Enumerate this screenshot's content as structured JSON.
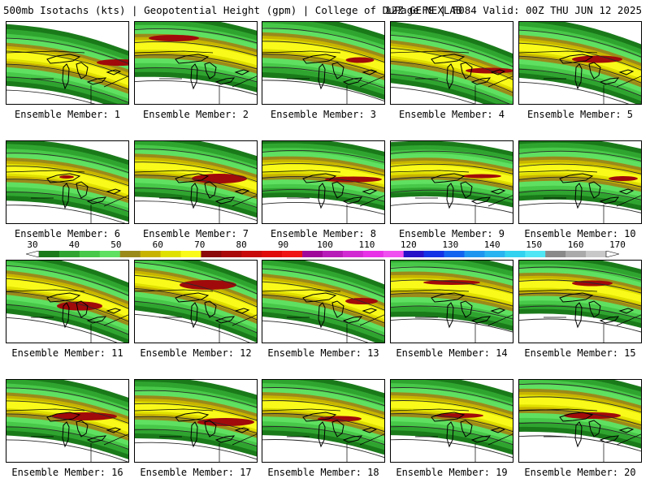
{
  "header": {
    "left": "500mb Isotachs (kts) | Geopotential Height (gpm) | College of DuPage NEXLAB",
    "right": "12Z GEFS | F084 Valid: 00Z THU JUN 12 2025"
  },
  "colorbar": {
    "labels": [
      "30",
      "40",
      "50",
      "60",
      "70",
      "80",
      "90",
      "100",
      "110",
      "120",
      "130",
      "140",
      "150",
      "160",
      "170"
    ],
    "colors": [
      "#1a7a1a",
      "#2fa52f",
      "#48c848",
      "#60e060",
      "#9a8a1a",
      "#c8b400",
      "#e0e000",
      "#fafa1a",
      "#8b0a0a",
      "#aa0a0a",
      "#c80a0a",
      "#e00a0a",
      "#f01414",
      "#a0089a",
      "#b81cb8",
      "#d22ad2",
      "#e832e8",
      "#f050f0",
      "#2810c8",
      "#1432e6",
      "#1464f0",
      "#1e96f0",
      "#28b4f0",
      "#32d2f0",
      "#50e6f5",
      "#8a8a8a",
      "#aaaaaa",
      "#c8c8c8"
    ]
  },
  "panels": [
    {
      "label": "Ensemble Member: 1"
    },
    {
      "label": "Ensemble Member: 2"
    },
    {
      "label": "Ensemble Member: 3"
    },
    {
      "label": "Ensemble Member: 4"
    },
    {
      "label": "Ensemble Member: 5"
    },
    {
      "label": "Ensemble Member: 6"
    },
    {
      "label": "Ensemble Member: 7"
    },
    {
      "label": "Ensemble Member: 8"
    },
    {
      "label": "Ensemble Member: 9"
    },
    {
      "label": "Ensemble Member: 10"
    },
    {
      "label": "Ensemble Member: 11"
    },
    {
      "label": "Ensemble Member: 12"
    },
    {
      "label": "Ensemble Member: 13"
    },
    {
      "label": "Ensemble Member: 14"
    },
    {
      "label": "Ensemble Member: 15"
    },
    {
      "label": "Ensemble Member: 16"
    },
    {
      "label": "Ensemble Member: 17"
    },
    {
      "label": "Ensemble Member: 18"
    },
    {
      "label": "Ensemble Member: 19"
    },
    {
      "label": "Ensemble Member: 20"
    }
  ]
}
